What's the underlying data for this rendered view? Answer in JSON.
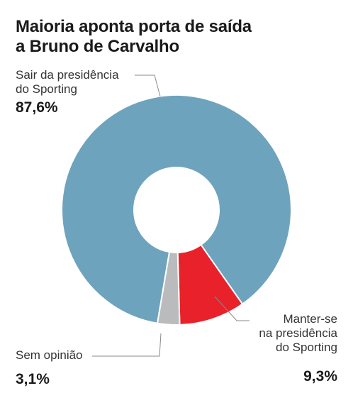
{
  "title": {
    "line1": "Maioria aponta porta de saída",
    "line2": "a Bruno de Carvalho"
  },
  "chart_data": {
    "type": "pie",
    "donut": true,
    "title": "Maioria aponta porta de saída a Bruno de Carvalho",
    "slices": [
      {
        "label": "Sair da presidência do Sporting",
        "label_lines": [
          "Sair da presidência",
          "do Sporting"
        ],
        "value": 87.6,
        "value_text": "87,6%",
        "color": "#6ea3bd"
      },
      {
        "label": "Manter-se na presidência do Sporting",
        "label_lines": [
          "Manter-se",
          "na presidência",
          "do Sporting"
        ],
        "value": 9.3,
        "value_text": "9,3%",
        "color": "#e8212b"
      },
      {
        "label": "Sem opinião",
        "label_lines": [
          "Sem opinião"
        ],
        "value": 3.1,
        "value_text": "3,1%",
        "color": "#b9bbbd"
      }
    ],
    "legend": "none",
    "grid": false
  }
}
